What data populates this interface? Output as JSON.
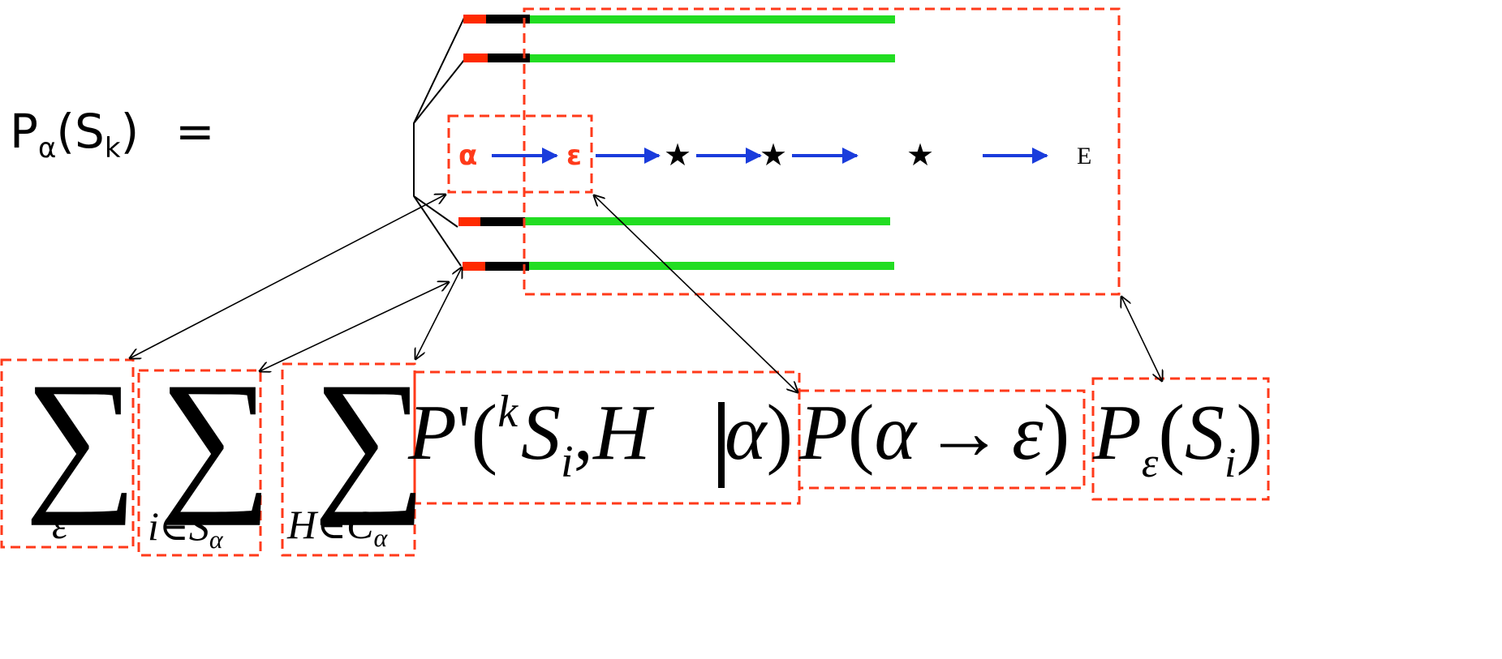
{
  "lhs": {
    "p": "P",
    "sub": "α",
    "open": "(",
    "s": "S",
    "s_sub": "k",
    "close": ")",
    "eq": "="
  },
  "chain": {
    "alpha": "α",
    "epsilon": "ε",
    "stars": [
      "★",
      "★",
      "★"
    ],
    "end": "E"
  },
  "formula": {
    "sum1": {
      "symbol": "∑",
      "index": "ε"
    },
    "sum2": {
      "symbol": "∑",
      "index_i": "i",
      "index_in": "∈",
      "index_s": "S",
      "index_sub": "α"
    },
    "sum3": {
      "symbol": "∑",
      "index_h": "H",
      "index_in": "∈",
      "index_c": "C",
      "index_sub": "α"
    },
    "term1": {
      "p": "P",
      "prime": "'",
      "open": "(",
      "sup_k": "k",
      "s": "S",
      "s_sub": "i",
      "comma": ",",
      "h": "H",
      "bar": "|",
      "alpha": "α",
      "close": ")"
    },
    "term2": {
      "p": "P",
      "open": "(",
      "alpha": "α",
      "arrow": "→",
      "epsilon": "ε",
      "close": ")"
    },
    "term3": {
      "p": "P",
      "p_sub": "ε",
      "open": "(",
      "s": "S",
      "s_sub": "i",
      "close": ")"
    }
  },
  "colors": {
    "green_bar": "#22dd22",
    "red_segment": "#ff2a00",
    "black_segment": "#000000",
    "dashed_box": "#ff3a1a",
    "blue_arrow": "#1a3cdc",
    "greek_red": "#ff3a1a"
  }
}
